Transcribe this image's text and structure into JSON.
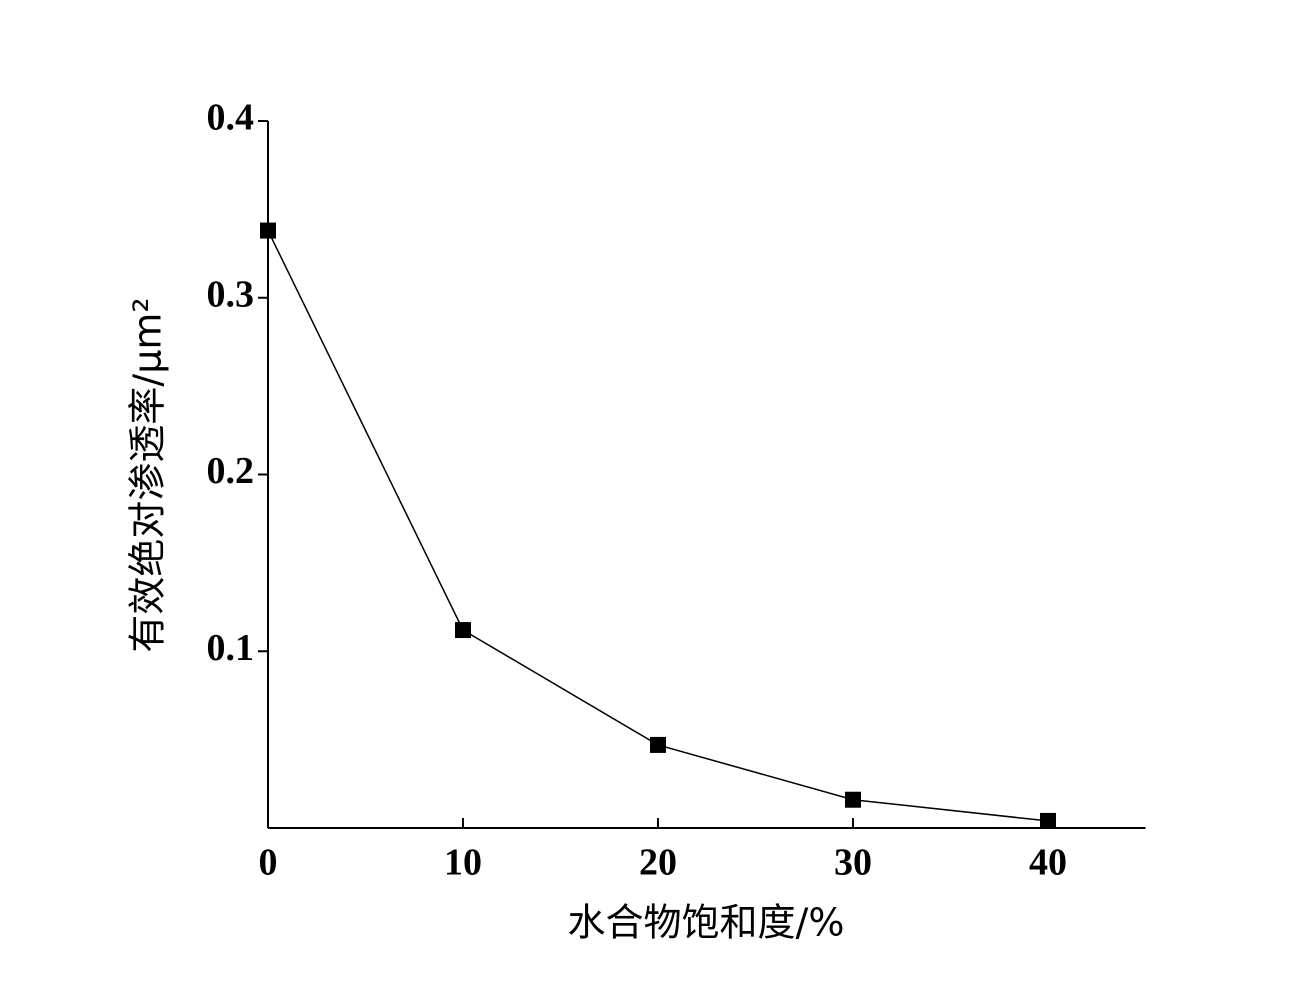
{
  "chart_data": {
    "type": "line",
    "x_label": "水合物饱和度/%",
    "y_label": "有效绝对渗透率/μm²",
    "x": [
      0,
      10,
      20,
      30,
      40
    ],
    "series": [
      {
        "color": "#000000",
        "values": [
          0.338,
          0.112,
          0.047,
          0.016,
          0.004
        ]
      }
    ],
    "xlim": [
      0,
      45
    ],
    "xticks": [
      0,
      10,
      20,
      30,
      40
    ],
    "ylim": [
      0,
      0.4
    ],
    "yticks": [
      0.1,
      0.2,
      0.3,
      0.4
    ],
    "grid": false
  }
}
